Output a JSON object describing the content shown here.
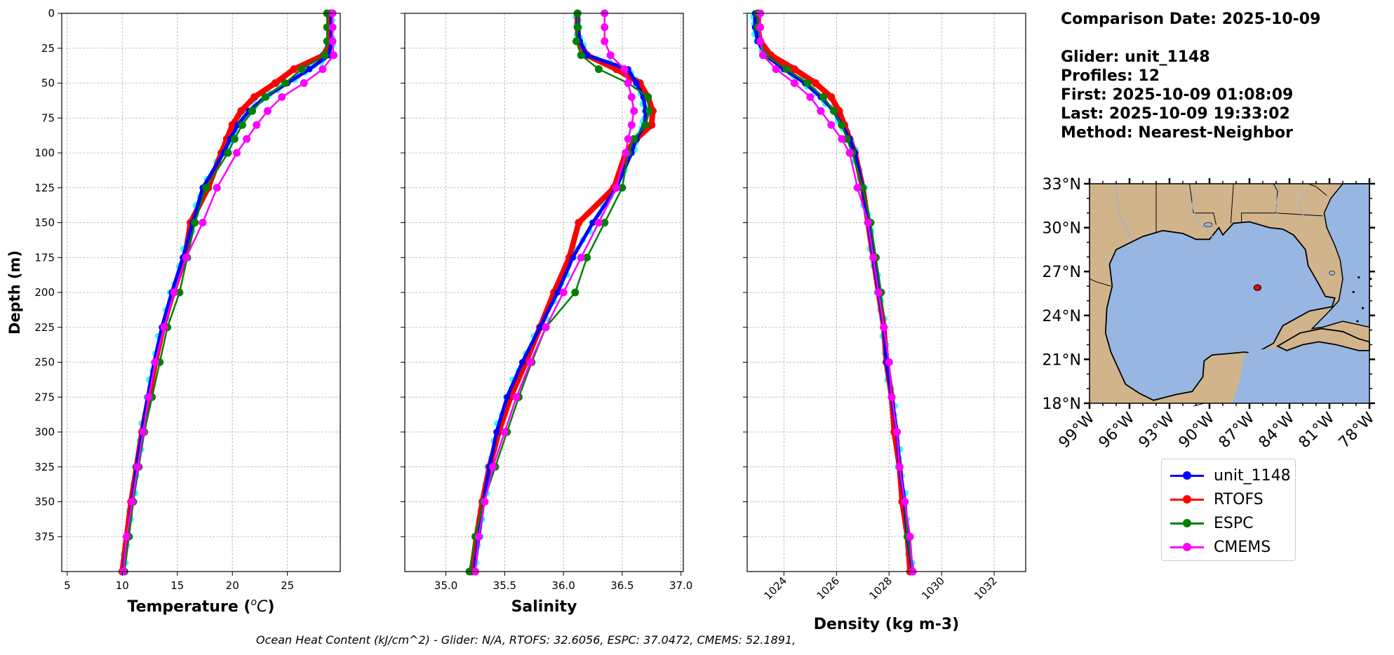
{
  "info": {
    "comparison": "Comparison Date: 2025-10-09",
    "glider": "Glider: unit_1148",
    "profiles": "Profiles: 12",
    "first": "First: 2025-10-09 01:08:09",
    "last": "Last: 2025-10-09 19:33:02",
    "method": "Method: Nearest-Neighbor"
  },
  "footnote": "Ocean Heat Content (kJ/cm^2) - Glider: N/A,  RTOFS: 32.6056,  ESPC: 37.0472,  CMEMS: 52.1891,",
  "legend": [
    {
      "name": "unit_1148",
      "color": "#0000ff"
    },
    {
      "name": "RTOFS",
      "color": "#ff0000"
    },
    {
      "name": "ESPC",
      "color": "#008000"
    },
    {
      "name": "CMEMS",
      "color": "#ff00ff"
    }
  ],
  "chart_data": [
    {
      "type": "line",
      "xlabel": "Temperature ($^oC$)",
      "ylabel": "Depth (m)",
      "xlim": [
        4.5,
        29.8
      ],
      "ylim": [
        400,
        0
      ],
      "xticks": [
        "5",
        "10",
        "15",
        "20",
        "25"
      ],
      "yticks": [
        "0",
        "25",
        "50",
        "75",
        "100",
        "125",
        "150",
        "175",
        "200",
        "225",
        "250",
        "275",
        "300",
        "325",
        "350",
        "375"
      ],
      "grid": true,
      "depth": [
        0,
        10,
        20,
        30,
        40,
        50,
        60,
        70,
        80,
        90,
        100,
        125,
        150,
        175,
        200,
        225,
        250,
        275,
        300,
        325,
        350,
        375,
        400
      ],
      "series": [
        {
          "name": "unit_1148",
          "values": [
            29.0,
            29.0,
            29.0,
            28.8,
            27.0,
            25.0,
            23.0,
            21.5,
            20.5,
            19.8,
            19.2,
            17.3,
            16.4,
            15.5,
            14.5,
            13.6,
            12.9,
            12.3,
            11.8,
            11.3,
            10.9,
            10.5,
            10.1
          ]
        },
        {
          "name": "RTOFS",
          "values": [
            28.9,
            28.9,
            28.9,
            28.3,
            25.6,
            23.9,
            22.0,
            20.8,
            20.0,
            19.5,
            19.0,
            17.8,
            16.2,
            15.7,
            14.6,
            13.7,
            13.0,
            12.4,
            11.8,
            11.3,
            10.8,
            10.4,
            10.0
          ]
        },
        {
          "name": "ESPC",
          "values": [
            28.6,
            28.6,
            28.6,
            28.4,
            26.3,
            24.8,
            23.0,
            21.8,
            20.9,
            20.2,
            19.6,
            17.6,
            16.6,
            15.9,
            15.2,
            14.1,
            13.4,
            12.7,
            12.0,
            11.5,
            11.0,
            10.6,
            10.2
          ]
        },
        {
          "name": "CMEMS",
          "values": [
            29.1,
            29.1,
            29.1,
            29.2,
            28.2,
            26.5,
            24.5,
            23.2,
            22.2,
            21.3,
            20.4,
            18.6,
            17.3,
            15.8,
            14.7,
            13.8,
            13.0,
            12.4,
            11.9,
            11.4,
            10.9,
            10.4,
            10.1
          ]
        }
      ]
    },
    {
      "type": "line",
      "xlabel": "Salinity",
      "xlim": [
        34.65,
        37.02
      ],
      "ylim": [
        400,
        0
      ],
      "xticks": [
        "35.0",
        "35.5",
        "36.0",
        "36.5",
        "37.0"
      ],
      "grid": true,
      "depth": [
        0,
        10,
        20,
        30,
        40,
        50,
        60,
        70,
        80,
        90,
        100,
        125,
        150,
        175,
        200,
        225,
        250,
        275,
        300,
        325,
        350,
        375,
        400
      ],
      "series": [
        {
          "name": "unit_1148",
          "values": [
            36.12,
            36.12,
            36.14,
            36.2,
            36.55,
            36.62,
            36.68,
            36.7,
            36.69,
            36.62,
            36.58,
            36.45,
            36.25,
            36.08,
            35.95,
            35.8,
            35.65,
            35.52,
            35.43,
            35.37,
            35.32,
            35.28,
            35.24
          ]
        },
        {
          "name": "RTOFS",
          "values": [
            36.12,
            36.12,
            36.13,
            36.2,
            36.45,
            36.65,
            36.72,
            36.76,
            36.75,
            36.62,
            36.53,
            36.43,
            36.13,
            36.05,
            35.92,
            35.8,
            35.68,
            35.55,
            35.45,
            35.37,
            35.31,
            35.26,
            35.22
          ]
        },
        {
          "name": "ESPC",
          "values": [
            36.12,
            36.12,
            36.11,
            36.15,
            36.3,
            36.55,
            36.72,
            36.73,
            36.7,
            36.6,
            36.55,
            36.5,
            36.35,
            36.2,
            36.1,
            35.85,
            35.73,
            35.62,
            35.52,
            35.42,
            35.32,
            35.25,
            35.2
          ]
        },
        {
          "name": "CMEMS",
          "values": [
            36.35,
            36.35,
            36.35,
            36.4,
            36.52,
            36.55,
            36.58,
            36.6,
            36.58,
            36.55,
            36.53,
            36.45,
            36.3,
            36.15,
            36.0,
            35.85,
            35.72,
            35.6,
            35.5,
            35.4,
            35.33,
            35.28,
            35.25
          ]
        }
      ]
    },
    {
      "type": "line",
      "xlabel": "Density (kg m-3)",
      "xlim": [
        1022.6,
        1033.2
      ],
      "ylim": [
        400,
        0
      ],
      "xticks": [
        "1024",
        "1026",
        "1028",
        "1030",
        "1032"
      ],
      "grid": true,
      "depth": [
        0,
        10,
        20,
        30,
        40,
        50,
        60,
        70,
        80,
        90,
        100,
        125,
        150,
        175,
        200,
        225,
        250,
        275,
        300,
        325,
        350,
        375,
        400
      ],
      "series": [
        {
          "name": "unit_1148",
          "values": [
            1022.9,
            1022.9,
            1023.0,
            1023.3,
            1024.0,
            1024.8,
            1025.4,
            1025.9,
            1026.2,
            1026.5,
            1026.7,
            1027.0,
            1027.2,
            1027.4,
            1027.6,
            1027.8,
            1027.9,
            1028.1,
            1028.3,
            1028.4,
            1028.6,
            1028.7,
            1028.9
          ]
        },
        {
          "name": "RTOFS",
          "values": [
            1023.0,
            1023.0,
            1023.1,
            1023.5,
            1024.4,
            1025.2,
            1025.8,
            1026.1,
            1026.3,
            1026.5,
            1026.7,
            1027.0,
            1027.2,
            1027.4,
            1027.6,
            1027.8,
            1027.9,
            1028.1,
            1028.2,
            1028.4,
            1028.5,
            1028.7,
            1028.8
          ]
        },
        {
          "name": "ESPC",
          "values": [
            1023.0,
            1023.0,
            1023.1,
            1023.3,
            1024.1,
            1024.9,
            1025.5,
            1025.9,
            1026.2,
            1026.4,
            1026.6,
            1027.0,
            1027.3,
            1027.5,
            1027.7,
            1027.8,
            1028.0,
            1028.1,
            1028.3,
            1028.4,
            1028.6,
            1028.7,
            1028.9
          ]
        },
        {
          "name": "CMEMS",
          "values": [
            1023.1,
            1023.1,
            1023.1,
            1023.2,
            1023.7,
            1024.4,
            1025.0,
            1025.4,
            1025.8,
            1026.2,
            1026.5,
            1026.8,
            1027.2,
            1027.4,
            1027.6,
            1027.8,
            1028.0,
            1028.1,
            1028.3,
            1028.4,
            1028.6,
            1028.8,
            1028.9
          ]
        }
      ]
    }
  ],
  "map": {
    "lon_range": [
      -99,
      -78
    ],
    "lat_range": [
      18,
      33
    ],
    "lon_ticks": [
      "99°W",
      "96°W",
      "93°W",
      "90°W",
      "87°W",
      "84°W",
      "81°W",
      "78°W"
    ],
    "lat_ticks": [
      "33°N",
      "30°N",
      "27°N",
      "24°N",
      "21°N",
      "18°N"
    ],
    "glider_location": {
      "lon": -86.4,
      "lat": 25.9
    },
    "land_color": "#d2b48c",
    "water_color": "#97b6e1"
  }
}
